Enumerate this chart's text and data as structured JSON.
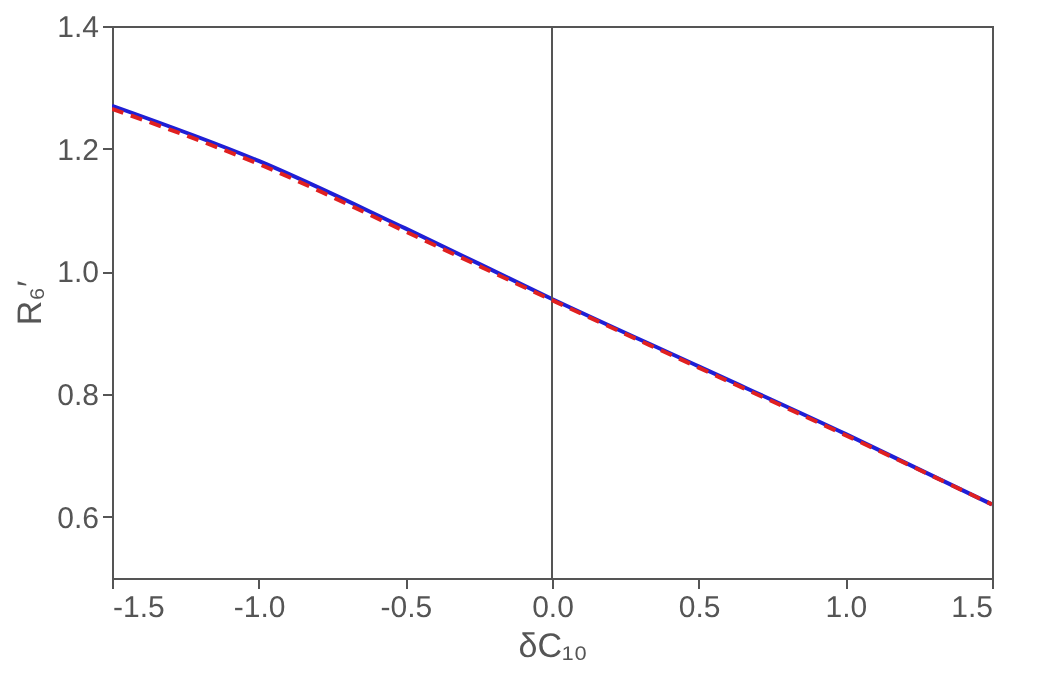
{
  "chart_data": {
    "type": "line",
    "xlabel": "δC₁₀",
    "ylabel": "R₆′",
    "x": [
      -1.5,
      -1.0,
      -0.5,
      0,
      0.5,
      1.0,
      1.5
    ],
    "series": [
      {
        "color": "#1f1fd6",
        "line_style": "solid",
        "values": [
          1.27,
          1.18,
          1.07,
          0.955,
          0.845,
          0.735,
          0.62
        ]
      },
      {
        "color": "#e02020",
        "line_style": "dashed",
        "values": [
          1.265,
          1.175,
          1.065,
          0.953,
          0.843,
          0.733,
          0.62
        ]
      }
    ],
    "xlim": [
      -1.5,
      1.5
    ],
    "ylim": [
      0.5,
      1.4
    ],
    "xticks": [
      {
        "value": -1.5,
        "label": "-1.5"
      },
      {
        "value": -1,
        "label": "-1.0"
      },
      {
        "value": -0.5,
        "label": "-0.5"
      },
      {
        "value": 0,
        "label": "0.0"
      },
      {
        "value": 0.5,
        "label": "0.5"
      },
      {
        "value": 1,
        "label": "1.0"
      },
      {
        "value": 1.5,
        "label": "1.5"
      }
    ],
    "yticks": [
      {
        "value": 0.6,
        "label": "0.6"
      },
      {
        "value": 0.8,
        "label": "0.8"
      },
      {
        "value": 1,
        "label": "1.0"
      },
      {
        "value": 1.2,
        "label": "1.2"
      },
      {
        "value": 1.4,
        "label": "1.4"
      }
    ],
    "ref_lines": [
      {
        "axis": "x",
        "value": 0,
        "color": "#555555"
      }
    ],
    "grid": false
  }
}
